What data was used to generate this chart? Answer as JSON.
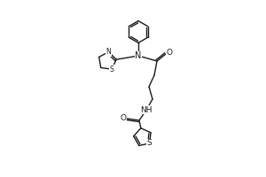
{
  "bg_color": "#ffffff",
  "line_color": "#1a1a1a",
  "line_width": 1.0,
  "font_size": 6.5,
  "fig_width": 3.0,
  "fig_height": 2.0,
  "dpi": 100,
  "xlim": [
    0,
    10
  ],
  "ylim": [
    0,
    10
  ]
}
